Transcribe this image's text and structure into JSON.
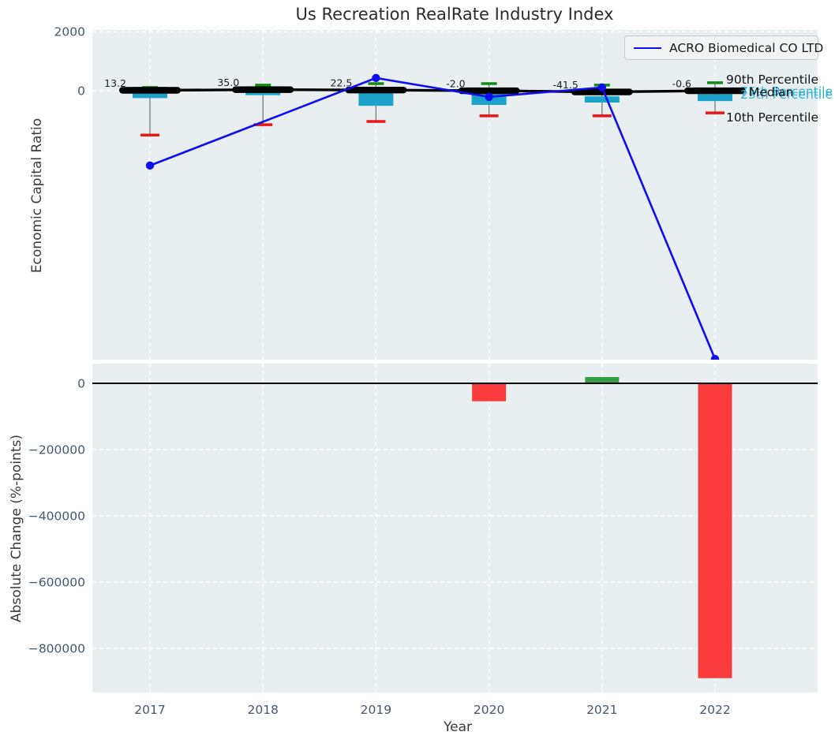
{
  "figure": {
    "title": "Us Recreation RealRate Industry Index",
    "plot_background": "#e9eef1",
    "grid_color": "#ffffff",
    "tick_color": "#46586e"
  },
  "legend": {
    "label": "ACRO Biomedical CO LTD",
    "line_color": "#0d0df2"
  },
  "axes": {
    "top": {
      "ylabel": "Economic Capital Ratio",
      "ytick_labels": [
        "2000",
        "0"
      ]
    },
    "bottom": {
      "ylabel": "Absolute Change (%-points)",
      "xlabel": "Year",
      "ytick_labels": [
        "0",
        "−200000",
        "−400000",
        "−600000",
        "−800000"
      ],
      "xtick_labels": [
        "2017",
        "2018",
        "2019",
        "2020",
        "2021",
        "2022"
      ]
    }
  },
  "side_labels": {
    "p90": {
      "text": "90th Percentile",
      "color": "#111111"
    },
    "p75": {
      "text": "75th Percentile",
      "color": "#2ab3dd"
    },
    "median": {
      "text": "Median",
      "color": "#111111"
    },
    "p25": {
      "text": "25th Percentile",
      "color": "#2ab3dd"
    },
    "p10": {
      "text": "10th Percentile",
      "color": "#111111"
    }
  },
  "chart_data": [
    {
      "type": "line",
      "subplot": "top",
      "title": "Us Recreation RealRate Industry Index",
      "ylabel": "Economic Capital Ratio",
      "x": [
        2017,
        2018,
        2019,
        2020,
        2021,
        2022
      ],
      "ylim": [
        -9090,
        2050
      ],
      "yticks": [
        2000,
        0
      ],
      "grid": true,
      "legend_position": "upper right",
      "series": [
        {
          "name": "ACRO Biomedical CO LTD",
          "role": "company-line",
          "color": "#0d0df2",
          "marker": "circle",
          "values": [
            -2530,
            null,
            430,
            -210,
            110,
            -9070
          ]
        },
        {
          "name": "90th Percentile",
          "role": "cap-top",
          "color": "#148a18",
          "values": [
            110,
            190,
            240,
            240,
            190,
            270
          ]
        },
        {
          "name": "75th Percentile",
          "role": "box-top",
          "color": "#1da2c9",
          "values": [
            130,
            150,
            0,
            60,
            -190,
            -110
          ]
        },
        {
          "name": "Median",
          "role": "median",
          "color": "#000000",
          "values": [
            13.2,
            35.0,
            22.5,
            -2.0,
            -41.5,
            -0.6
          ],
          "labels": [
            "13.2",
            "35.0",
            "22.5",
            "-2.0",
            "-41.5",
            "-0.6"
          ]
        },
        {
          "name": "25th Percentile",
          "role": "box-bottom",
          "color": "#1da2c9",
          "values": [
            -250,
            -150,
            -510,
            -480,
            -400,
            -350
          ]
        },
        {
          "name": "10th Percentile",
          "role": "cap-bottom",
          "color": "#ea1515",
          "values": [
            -1500,
            -1150,
            -1040,
            -850,
            -850,
            -750
          ]
        }
      ]
    },
    {
      "type": "bar",
      "subplot": "bottom",
      "ylabel": "Absolute Change (%-points)",
      "xlabel": "Year",
      "categories": [
        2017,
        2018,
        2019,
        2020,
        2021,
        2022
      ],
      "values": [
        null,
        null,
        null,
        -54000,
        19000,
        -890000
      ],
      "bar_colors": [
        null,
        null,
        null,
        "#f93c3b",
        "#349e44",
        "#f93c3b"
      ],
      "yticks": [
        0,
        -200000,
        -400000,
        -600000,
        -800000
      ],
      "ylim": [
        -935000,
        59000
      ],
      "zero_line": true,
      "grid": true
    }
  ]
}
